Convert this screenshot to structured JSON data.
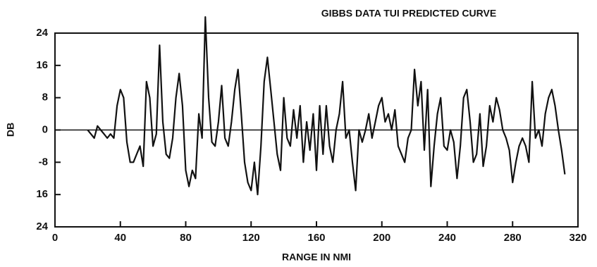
{
  "chart_data": {
    "type": "line",
    "title": "GIBBS DATA TUI PREDICTED CURVE",
    "xlabel": "RANGE IN NMI",
    "ylabel": "DB",
    "xlim": [
      0,
      320
    ],
    "xticks": [
      0,
      40,
      80,
      120,
      160,
      200,
      240,
      280,
      320
    ],
    "ylim": [
      -24,
      24
    ],
    "yticks": [
      24,
      16,
      8,
      0,
      -8,
      {
        "value": -16,
        "label": "16"
      },
      {
        "value": -24,
        "label": "24"
      }
    ],
    "zero_line": true,
    "color": "#111111",
    "x": [
      20,
      22,
      24,
      26,
      28,
      30,
      32,
      34,
      36,
      38,
      40,
      42,
      44,
      46,
      48,
      50,
      52,
      54,
      56,
      58,
      60,
      62,
      64,
      66,
      68,
      70,
      72,
      74,
      76,
      78,
      80,
      82,
      84,
      86,
      88,
      90,
      92,
      94,
      96,
      98,
      100,
      102,
      104,
      106,
      108,
      110,
      112,
      114,
      116,
      118,
      120,
      122,
      124,
      126,
      128,
      130,
      132,
      134,
      136,
      138,
      140,
      142,
      144,
      146,
      148,
      150,
      152,
      154,
      156,
      158,
      160,
      162,
      164,
      166,
      168,
      170,
      172,
      174,
      176,
      178,
      180,
      182,
      184,
      186,
      188,
      190,
      192,
      194,
      196,
      198,
      200,
      202,
      204,
      206,
      208,
      210,
      212,
      214,
      216,
      218,
      220,
      222,
      224,
      226,
      228,
      230,
      232,
      234,
      236,
      238,
      240,
      242,
      244,
      246,
      248,
      250,
      252,
      254,
      256,
      258,
      260,
      262,
      264,
      266,
      268,
      270,
      272,
      274,
      276,
      278,
      280,
      282,
      284,
      286,
      288,
      290,
      292,
      294,
      296,
      298,
      300,
      302,
      304,
      306,
      308,
      310,
      312
    ],
    "values": [
      0,
      -1,
      -2,
      1,
      0,
      -1,
      -2,
      -1,
      -2,
      6,
      10,
      8,
      -3,
      -8,
      -8,
      -6,
      -4,
      -9,
      12,
      8,
      -4,
      -1,
      21,
      2,
      -6,
      -7,
      -2,
      8,
      14,
      6,
      -10,
      -14,
      -10,
      -12,
      4,
      -2,
      28,
      8,
      -3,
      -4,
      2,
      11,
      -2,
      -4,
      2,
      10,
      15,
      4,
      -8,
      -13,
      -15,
      -8,
      -16,
      -4,
      12,
      18,
      10,
      2,
      -6,
      -10,
      8,
      -2,
      -4,
      5,
      -2,
      6,
      -8,
      2,
      -5,
      4,
      -10,
      6,
      -6,
      6,
      -4,
      -8,
      0,
      4,
      12,
      -2,
      0,
      -8,
      -15,
      0,
      -3,
      0,
      4,
      -2,
      2,
      6,
      8,
      2,
      4,
      0,
      5,
      -4,
      -6,
      -8,
      -2,
      0,
      15,
      6,
      12,
      -5,
      10,
      -14,
      -4,
      4,
      8,
      -4,
      -5,
      0,
      -3,
      -12,
      -4,
      8,
      10,
      2,
      -8,
      -6,
      4,
      -9,
      -4,
      6,
      2,
      8,
      5,
      0,
      -2,
      -5,
      -13,
      -8,
      -4,
      -2,
      -4,
      -8,
      12,
      -2,
      0,
      -4,
      4,
      8,
      10,
      6,
      0,
      -5,
      -11
    ]
  }
}
